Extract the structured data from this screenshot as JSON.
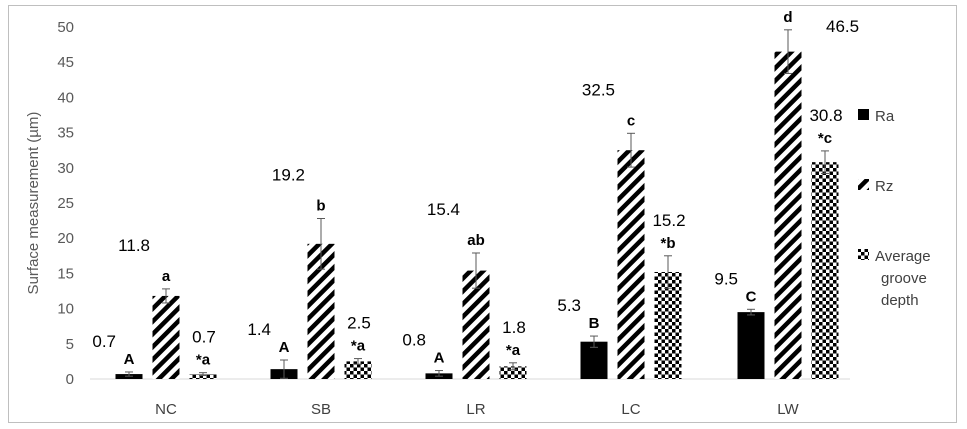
{
  "chart_data": {
    "type": "bar",
    "ylabel": "Surface measurement (µm)",
    "ylim": [
      0,
      50
    ],
    "yticks": [
      0,
      5,
      10,
      15,
      20,
      25,
      30,
      35,
      40,
      45,
      50
    ],
    "grid": false,
    "legend_position": "right",
    "categories": [
      "NC",
      "SB",
      "LR",
      "LC",
      "LW"
    ],
    "series": [
      {
        "name": "Ra",
        "pattern": "solid",
        "color": "#000000",
        "values": [
          0.7,
          1.4,
          0.8,
          5.3,
          9.5
        ],
        "errors": [
          0.3,
          1.3,
          0.4,
          0.8,
          0.4
        ],
        "value_labels": [
          "0.7",
          "1.4",
          "0.8",
          "5.3",
          "9.5"
        ],
        "significance": [
          "A",
          "A",
          "A",
          "B",
          "C"
        ]
      },
      {
        "name": "Rz",
        "pattern": "diagonal-stripes",
        "color": "#000000",
        "values": [
          11.8,
          19.2,
          15.4,
          32.5,
          46.5
        ],
        "errors": [
          1.0,
          3.6,
          2.5,
          2.4,
          3.1
        ],
        "value_labels": [
          "11.8",
          "19.2",
          "15.4",
          "32.5",
          "46.5"
        ],
        "significance": [
          "a",
          "b",
          "ab",
          "c",
          "d"
        ]
      },
      {
        "name": "Average groove depth",
        "pattern": "checkerboard",
        "color": "#000000",
        "values": [
          0.7,
          2.5,
          1.8,
          15.2,
          30.8
        ],
        "errors": [
          0.2,
          0.4,
          0.5,
          2.3,
          1.6
        ],
        "value_labels": [
          "0.7",
          "2.5",
          "1.8",
          "15.2",
          "30.8"
        ],
        "significance": [
          "*a",
          "*a",
          "*a",
          "*b",
          "*c"
        ]
      }
    ]
  }
}
